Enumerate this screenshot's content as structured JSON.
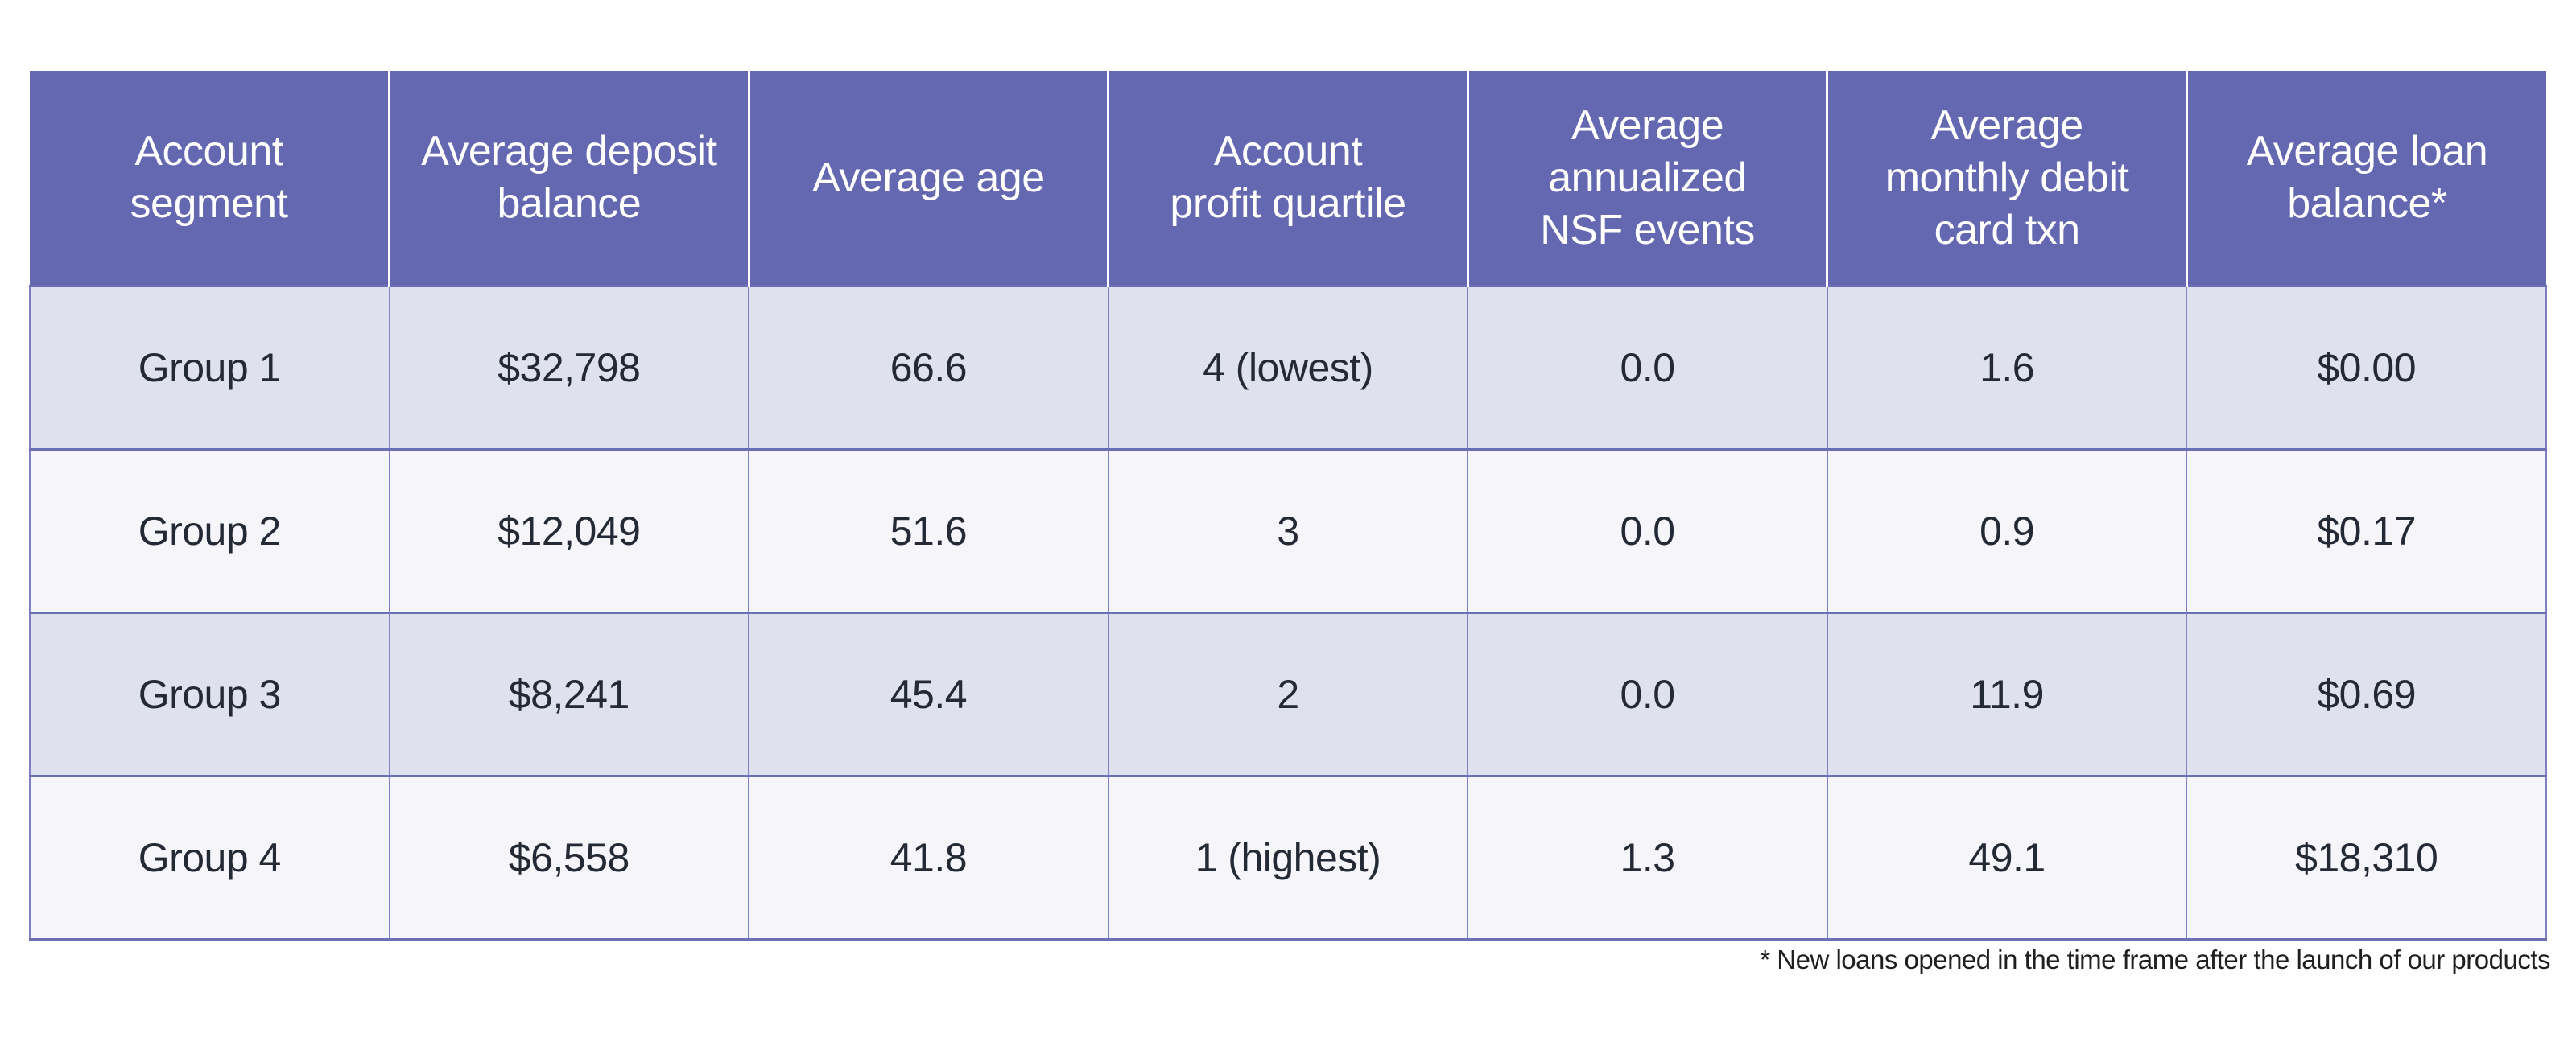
{
  "chart_data": {
    "type": "table",
    "columns": [
      "Account\nsegment",
      "Average deposit\nbalance",
      "Average age",
      "Account\nprofit quartile",
      "Average\nannualized\nNSF events",
      "Average\nmonthly debit\ncard txn",
      "Average loan\nbalance*"
    ],
    "rows": [
      [
        "Group 1",
        "$32,798",
        "66.6",
        "4 (lowest)",
        "0.0",
        "1.6",
        "$0.00"
      ],
      [
        "Group 2",
        "$12,049",
        "51.6",
        "3",
        "0.0",
        "0.9",
        "$0.17"
      ],
      [
        "Group 3",
        "$8,241",
        "45.4",
        "2",
        "0.0",
        "11.9",
        "$0.69"
      ],
      [
        "Group 4",
        "$6,558",
        "41.8",
        "1 (highest)",
        "1.3",
        "49.1",
        "$18,310"
      ]
    ],
    "footnote": "* New loans opened in the time frame after the launch of our products"
  },
  "colors": {
    "header_bg": "#6468b0",
    "header_text": "#ffffff",
    "row_odd_bg": "#e0e1ef",
    "row_even_bg": "#f5f5fa",
    "grid_border": "#7e82c2",
    "row_border": "#6b6fb5",
    "body_text": "#242936",
    "footnote_text": "#1f1f1f"
  }
}
